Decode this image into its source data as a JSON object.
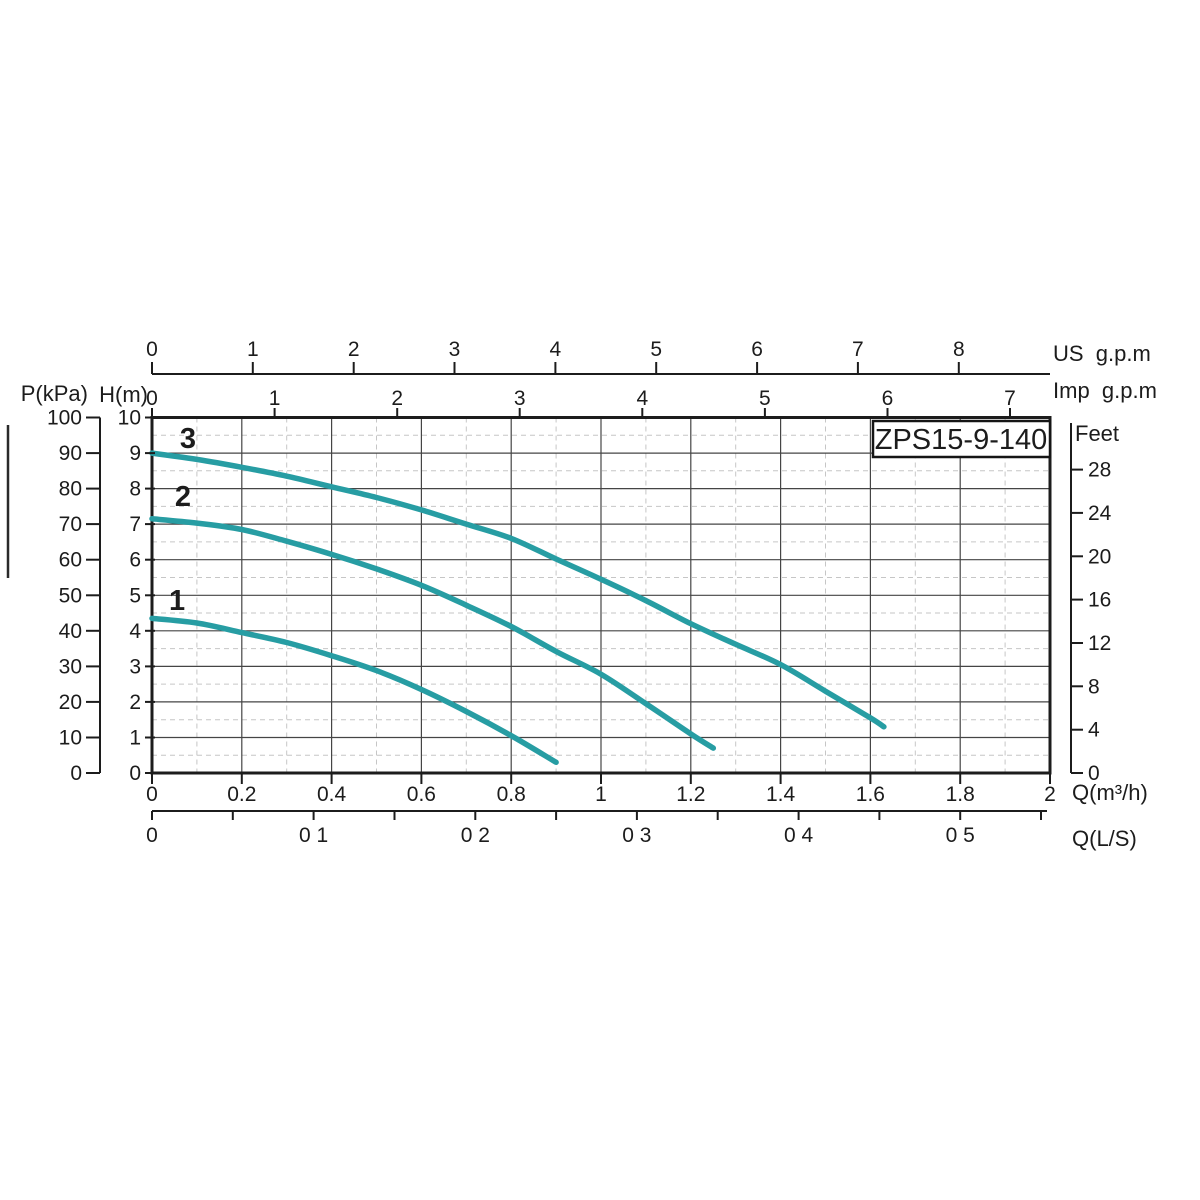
{
  "page": {
    "background": "#ffffff"
  },
  "chart_data": {
    "type": "line",
    "title": "ZPS15-9-140",
    "x_axes": {
      "m3h": {
        "label": "Q(m³/h)",
        "min": 0,
        "max": 2,
        "major_tick_step": 0.2,
        "minor_grid_step": 0.1,
        "tick_labels": [
          "0",
          "0.2",
          "0.4",
          "0.6",
          "0.8",
          "1",
          "1.2",
          "1.4",
          "1.6",
          "1.8",
          "2"
        ]
      },
      "ls": {
        "label": "Q(L/S)",
        "to_m3h": 3.6,
        "tick_step": 0.05,
        "max": 0.55,
        "labeled_values": [
          0,
          0.1,
          0.2,
          0.3,
          0.4,
          0.5
        ],
        "tick_labels": [
          "0",
          "0 1",
          "0 2",
          "0 3",
          "0 4",
          "0 5"
        ]
      },
      "us_gpm": {
        "label": "US  g.p.m",
        "to_m3h": 0.2246,
        "ticks": [
          0,
          1,
          2,
          3,
          4,
          5,
          6,
          7,
          8
        ]
      },
      "imp_gpm": {
        "label": "Imp  g.p.m",
        "to_m3h": 0.273,
        "ticks": [
          0,
          1,
          2,
          3,
          4,
          5,
          6,
          7
        ]
      }
    },
    "y_axes": {
      "m": {
        "label": "H(m)",
        "min": 0,
        "max": 10,
        "tick_step": 1,
        "minor_grid_step": 0.5,
        "tick_labels": [
          "10",
          "9",
          "8",
          "7",
          "6",
          "5",
          "4",
          "3",
          "2",
          "1",
          "0"
        ]
      },
      "kpa": {
        "label": "P(kPa)",
        "ticks": [
          100,
          90,
          80,
          70,
          60,
          50,
          40,
          30,
          20,
          10,
          0
        ],
        "m_per_unit": 0.1
      },
      "feet": {
        "label": "Feet",
        "ticks": [
          28,
          24,
          20,
          16,
          12,
          8,
          4,
          0
        ],
        "m_per_unit": 0.3048
      }
    },
    "series": [
      {
        "name": "1",
        "label_at": {
          "q": 0.056,
          "h": 4.87
        },
        "points": [
          [
            0,
            4.35
          ],
          [
            0.1,
            4.22
          ],
          [
            0.2,
            3.95
          ],
          [
            0.3,
            3.67
          ],
          [
            0.4,
            3.3
          ],
          [
            0.5,
            2.88
          ],
          [
            0.6,
            2.35
          ],
          [
            0.7,
            1.73
          ],
          [
            0.8,
            1.05
          ],
          [
            0.9,
            0.3
          ]
        ]
      },
      {
        "name": "2",
        "label_at": {
          "q": 0.069,
          "h": 7.79
        },
        "points": [
          [
            0,
            7.15
          ],
          [
            0.1,
            7.03
          ],
          [
            0.2,
            6.85
          ],
          [
            0.3,
            6.52
          ],
          [
            0.4,
            6.15
          ],
          [
            0.5,
            5.74
          ],
          [
            0.6,
            5.28
          ],
          [
            0.7,
            4.72
          ],
          [
            0.8,
            4.12
          ],
          [
            0.9,
            3.42
          ],
          [
            1.0,
            2.78
          ],
          [
            1.1,
            1.95
          ],
          [
            1.2,
            1.1
          ],
          [
            1.25,
            0.7
          ]
        ]
      },
      {
        "name": "3",
        "label_at": {
          "q": 0.08,
          "h": 9.42
        },
        "points": [
          [
            0,
            9.0
          ],
          [
            0.1,
            8.82
          ],
          [
            0.2,
            8.6
          ],
          [
            0.3,
            8.35
          ],
          [
            0.4,
            8.05
          ],
          [
            0.5,
            7.75
          ],
          [
            0.6,
            7.4
          ],
          [
            0.7,
            7.0
          ],
          [
            0.8,
            6.6
          ],
          [
            0.9,
            6.02
          ],
          [
            1.0,
            5.45
          ],
          [
            1.1,
            4.85
          ],
          [
            1.2,
            4.2
          ],
          [
            1.3,
            3.62
          ],
          [
            1.4,
            3.05
          ],
          [
            1.5,
            2.3
          ],
          [
            1.6,
            1.55
          ],
          [
            1.63,
            1.3
          ]
        ]
      }
    ],
    "style": {
      "curve_color": "#279da3",
      "axis_color": "#1c1c1c",
      "grid_major_color": "#454545",
      "grid_minor_color": "#c6c6c6",
      "text_color": "#1c1c1c",
      "box_fill": "#ffffff"
    }
  }
}
